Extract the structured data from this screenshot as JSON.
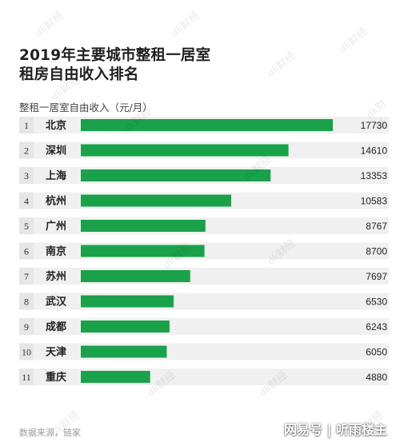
{
  "title_lines": [
    "2019年主要城市整租一居室",
    "租房自由收入排名"
  ],
  "unit_label": "整租一居室自由收入（元/月）",
  "source": "数据来源，链家",
  "brand": "网易号 | 听雨楼主",
  "watermark_text": "dk财经",
  "colors": {
    "bar": "#19a24a",
    "row_bg": "#f0f0f0",
    "rank_bg": "#e6e6e6",
    "text": "#1f1f1f"
  },
  "chart_data": {
    "type": "bar",
    "orientation": "horizontal",
    "title": "2019年主要城市整租一居室租房自由收入排名",
    "ylabel": "整租一居室自由收入（元/月）",
    "ranks": [
      "1",
      "2",
      "3",
      "4",
      "5",
      "6",
      "7",
      "8",
      "9",
      "10",
      "11"
    ],
    "categories": [
      "北京",
      "深圳",
      "上海",
      "杭州",
      "广州",
      "南京",
      "苏州",
      "武汉",
      "成都",
      "天津",
      "重庆"
    ],
    "values": [
      17730,
      14610,
      13353,
      10583,
      8767,
      8700,
      7697,
      6530,
      6243,
      6050,
      4880
    ],
    "xlim": [
      0,
      17730
    ],
    "grid": false,
    "legend": "none"
  }
}
